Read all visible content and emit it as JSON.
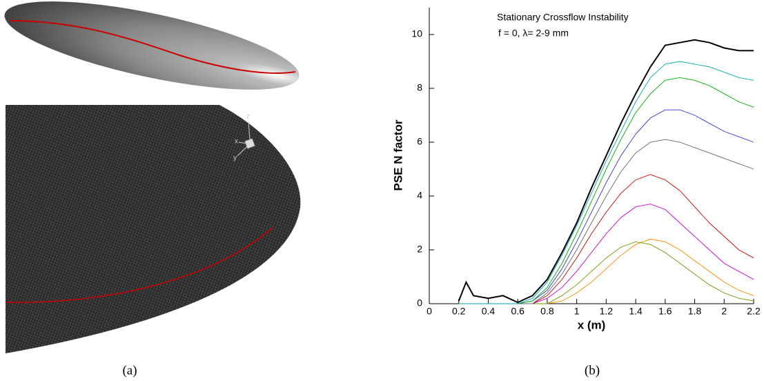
{
  "figure": {
    "captions": [
      "(a)",
      "(b)"
    ],
    "axis_triad": [
      "z",
      "x",
      "y"
    ]
  },
  "chart_data": {
    "type": "line",
    "title": "Stationary Crossflow Instability",
    "subtitle": "f = 0,  λ= 2-9 mm",
    "xlabel": "x (m)",
    "ylabel": "PSE N factor",
    "x": [
      0.2,
      0.25,
      0.3,
      0.4,
      0.5,
      0.6,
      0.7,
      0.8,
      0.9,
      1.0,
      1.1,
      1.2,
      1.3,
      1.4,
      1.5,
      1.6,
      1.7,
      1.8,
      1.9,
      2.0,
      2.1,
      2.2
    ],
    "series": [
      {
        "color": "#000000",
        "values": [
          0.1,
          0.8,
          0.3,
          0.2,
          0.3,
          0.05,
          0.3,
          0.9,
          1.9,
          3.0,
          4.3,
          5.5,
          6.7,
          7.8,
          8.8,
          9.6,
          9.7,
          9.8,
          9.7,
          9.5,
          9.4,
          9.4
        ]
      },
      {
        "color": "#00aaaa",
        "values": [
          0,
          0,
          0,
          0,
          0,
          0,
          0.2,
          0.8,
          1.8,
          2.9,
          4.1,
          5.3,
          6.4,
          7.5,
          8.4,
          8.9,
          9.0,
          8.9,
          8.8,
          8.6,
          8.4,
          8.3
        ]
      },
      {
        "color": "#00aa00",
        "values": [
          0,
          0,
          0,
          0,
          0,
          0,
          0.1,
          0.6,
          1.5,
          2.6,
          3.8,
          5.0,
          6.1,
          7.1,
          7.8,
          8.3,
          8.4,
          8.3,
          8.1,
          7.8,
          7.5,
          7.3
        ]
      },
      {
        "color": "#3333cc",
        "values": [
          0,
          0,
          0,
          0,
          0,
          0,
          0.1,
          0.5,
          1.3,
          2.3,
          3.4,
          4.5,
          5.5,
          6.3,
          6.9,
          7.2,
          7.2,
          7.0,
          6.7,
          6.4,
          6.2,
          6.0
        ]
      },
      {
        "color": "#666666",
        "values": [
          0,
          0,
          0,
          0,
          0,
          0,
          0,
          0.4,
          1.1,
          2.0,
          3.0,
          4.0,
          4.9,
          5.6,
          6.0,
          6.1,
          6.0,
          5.8,
          5.6,
          5.4,
          5.2,
          5.0
        ]
      },
      {
        "color": "#cc0000",
        "values": [
          0,
          0,
          0,
          0,
          0,
          0,
          0,
          0.3,
          0.9,
          1.7,
          2.6,
          3.4,
          4.1,
          4.6,
          4.8,
          4.6,
          4.2,
          3.6,
          3.0,
          2.5,
          2.0,
          1.7
        ]
      },
      {
        "color": "#cc00cc",
        "values": [
          0,
          0,
          0,
          0,
          0,
          0,
          0,
          0.2,
          0.6,
          1.2,
          1.9,
          2.6,
          3.2,
          3.6,
          3.7,
          3.5,
          3.0,
          2.5,
          2.0,
          1.5,
          1.2,
          0.9
        ]
      },
      {
        "color": "#669900",
        "values": [
          0,
          0,
          0,
          0,
          0,
          0,
          0,
          0,
          0.3,
          0.7,
          1.2,
          1.7,
          2.1,
          2.3,
          2.2,
          1.9,
          1.5,
          1.1,
          0.7,
          0.4,
          0.2,
          0.1
        ]
      },
      {
        "color": "#ff8800",
        "values": [
          0,
          0,
          0,
          0,
          0,
          0,
          0,
          0,
          0.1,
          0.4,
          0.8,
          1.3,
          1.8,
          2.2,
          2.4,
          2.3,
          2.0,
          1.6,
          1.2,
          0.8,
          0.5,
          0.3
        ]
      }
    ],
    "xlim": [
      0,
      2.2
    ],
    "ylim": [
      0,
      11
    ],
    "xticks": [
      0,
      0.2,
      0.4,
      0.6,
      0.8,
      1,
      1.2,
      1.4,
      1.6,
      1.8,
      2,
      2.2
    ],
    "yticks": [
      0,
      2,
      4,
      6,
      8,
      10
    ],
    "grid": false
  }
}
